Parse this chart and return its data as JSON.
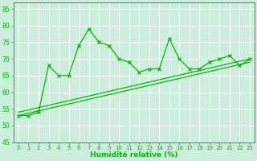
{
  "xlabel": "Humidité relative (%)",
  "xlim": [
    -0.5,
    23.5
  ],
  "ylim": [
    45,
    87
  ],
  "yticks": [
    45,
    50,
    55,
    60,
    65,
    70,
    75,
    80,
    85
  ],
  "xticks": [
    0,
    1,
    2,
    3,
    4,
    5,
    6,
    7,
    8,
    9,
    10,
    11,
    12,
    13,
    14,
    15,
    16,
    17,
    18,
    19,
    20,
    21,
    22,
    23
  ],
  "bg_color": "#cceedd",
  "grid_color": "#ffffff",
  "line_color": "#00bb00",
  "line1_x": [
    0,
    1,
    2,
    3,
    4,
    5,
    6,
    7,
    8,
    9,
    10,
    11,
    12,
    13,
    14,
    15,
    16,
    17,
    18,
    19,
    20,
    21,
    22,
    23
  ],
  "line1_y": [
    53,
    53,
    54,
    68,
    65,
    65,
    74,
    79,
    75,
    74,
    70,
    69,
    66,
    67,
    67,
    76,
    70,
    67,
    67,
    69,
    70,
    71,
    68,
    70
  ],
  "line2_x": [
    0,
    23
  ],
  "line2_y": [
    54,
    70
  ],
  "line3_x": [
    0,
    23
  ],
  "line3_y": [
    53,
    69
  ]
}
